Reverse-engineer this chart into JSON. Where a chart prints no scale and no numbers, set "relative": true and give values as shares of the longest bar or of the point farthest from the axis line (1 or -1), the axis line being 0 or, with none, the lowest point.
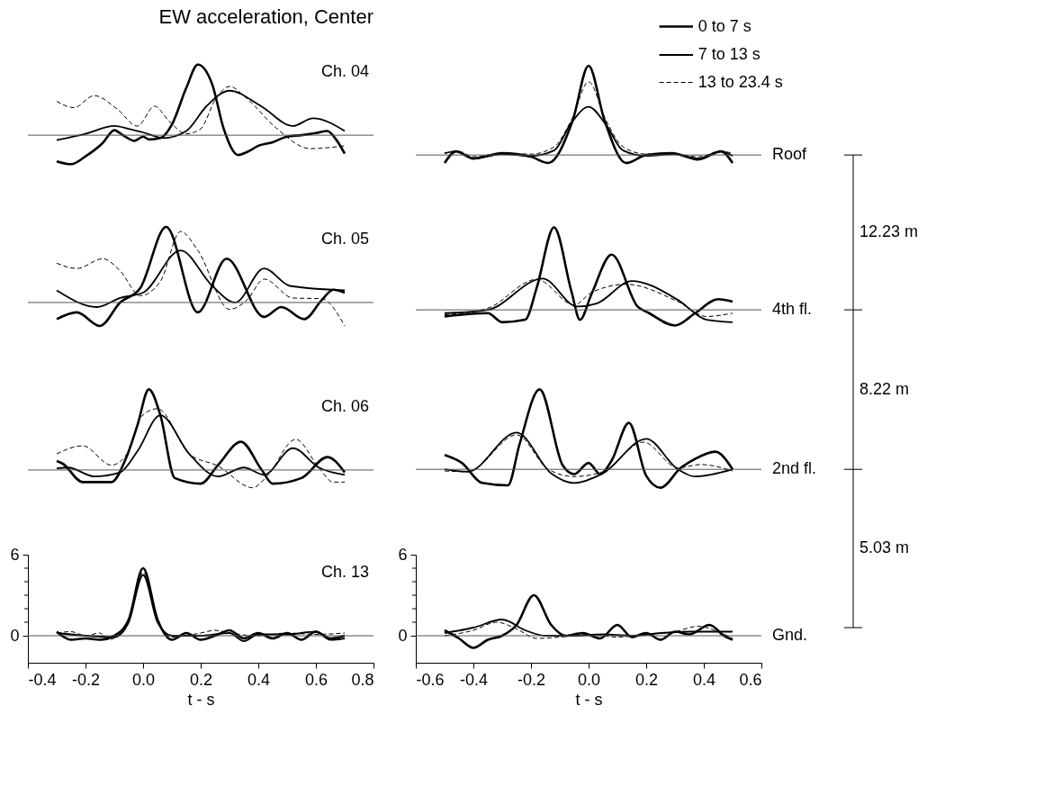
{
  "chart_data": [
    {
      "type": "line",
      "title": "EW acceleration, Center",
      "legend": "top right",
      "relative": true,
      "xlim": [
        -0.4,
        0.8
      ],
      "annotations": [
        "Ch. 04"
      ],
      "series": [
        {
          "name": "0 to 7 s",
          "color": "#000000",
          "line_style": "solid",
          "x": [
            -0.3,
            -0.25,
            -0.2,
            -0.14,
            -0.1,
            -0.07,
            -0.03,
            0.0,
            0.02,
            0.06,
            0.1,
            0.15,
            0.19,
            0.24,
            0.28,
            0.33,
            0.37,
            0.4,
            0.45,
            0.5,
            0.55,
            0.6,
            0.64,
            0.67,
            0.7
          ],
          "values": [
            -0.37,
            -0.41,
            -0.3,
            -0.11,
            0.07,
            0.0,
            -0.08,
            -0.02,
            -0.06,
            -0.04,
            0.15,
            0.67,
            1,
            0.72,
            0.09,
            -0.28,
            -0.22,
            -0.15,
            -0.1,
            -0.02,
            0.0,
            0.03,
            0.06,
            -0.06,
            -0.26
          ]
        },
        {
          "name": "7 to 13 s",
          "color": "#000000",
          "line_style": "solid",
          "x": [
            -0.3,
            -0.2,
            -0.1,
            -0.05,
            0.0,
            0.07,
            0.15,
            0.22,
            0.3,
            0.41,
            0.52,
            0.59,
            0.7
          ],
          "values": [
            -0.07,
            0.02,
            0.13,
            0.09,
            0.04,
            -0.04,
            0.06,
            0.41,
            0.63,
            0.41,
            0.13,
            0.24,
            0.06
          ]
        },
        {
          "name": "13 to 23.4 s",
          "color": "#000000",
          "line_style": "dashed",
          "x": [
            -0.3,
            -0.24,
            -0.17,
            -0.09,
            -0.02,
            0.04,
            0.09,
            0.15,
            0.2,
            0.25,
            0.3,
            0.36,
            0.46,
            0.58,
            0.7
          ],
          "values": [
            0.48,
            0.39,
            0.56,
            0.37,
            0.13,
            0.41,
            0.2,
            0.02,
            0.09,
            0.5,
            0.69,
            0.52,
            0.11,
            -0.19,
            -0.15
          ]
        }
      ]
    },
    {
      "type": "line",
      "relative": true,
      "xlim": [
        -0.6,
        0.6
      ],
      "annotations": [
        "Roof"
      ],
      "series": [
        {
          "name": "0 to 7 s",
          "color": "#000000",
          "line_style": "solid",
          "x": [
            -0.5,
            -0.46,
            -0.4,
            -0.3,
            -0.2,
            -0.14,
            -0.055,
            0.0,
            0.055,
            0.13,
            0.2,
            0.29,
            0.38,
            0.46,
            0.5
          ],
          "values": [
            -0.09,
            0.04,
            -0.04,
            0.02,
            -0.02,
            -0.09,
            0.39,
            1,
            0.39,
            -0.09,
            0.0,
            0.02,
            -0.05,
            0.04,
            -0.09
          ]
        },
        {
          "name": "7 to 13 s",
          "color": "#000000",
          "line_style": "solid",
          "x": [
            -0.5,
            -0.46,
            -0.4,
            -0.3,
            -0.2,
            -0.12,
            -0.06,
            0.0,
            0.06,
            0.12,
            0.2,
            0.3,
            0.38,
            0.46,
            0.5
          ],
          "values": [
            0.02,
            0.04,
            -0.04,
            0.01,
            -0.01,
            0.05,
            0.36,
            0.54,
            0.34,
            0.05,
            -0.01,
            0.01,
            -0.04,
            0.04,
            -0.01
          ]
        },
        {
          "name": "13 to 23.4 s",
          "color": "#000000",
          "line_style": "dashed",
          "x": [
            -0.5,
            -0.45,
            -0.4,
            -0.3,
            -0.2,
            -0.12,
            -0.06,
            0.0,
            0.06,
            0.12,
            0.2,
            0.3,
            0.38,
            0.46,
            0.5
          ],
          "values": [
            0.02,
            0.04,
            -0.02,
            0.02,
            0.01,
            0.09,
            0.39,
            0.82,
            0.39,
            0.09,
            0.01,
            0.01,
            -0.02,
            0.04,
            0.02
          ]
        }
      ]
    },
    {
      "type": "line",
      "relative": true,
      "xlim": [
        -0.4,
        0.8
      ],
      "annotations": [
        "Ch. 05"
      ],
      "series": [
        {
          "name": "0 to 7 s",
          "color": "#000000",
          "line_style": "solid",
          "x": [
            -0.3,
            -0.23,
            -0.15,
            -0.08,
            -0.01,
            0.08,
            0.19,
            0.29,
            0.42,
            0.48,
            0.56,
            0.62,
            0.66,
            0.7
          ],
          "values": [
            -0.22,
            -0.13,
            -0.31,
            0.0,
            0.19,
            1,
            -0.13,
            0.58,
            -0.19,
            -0.06,
            -0.22,
            0.03,
            0.17,
            0.13
          ]
        },
        {
          "name": "7 to 13 s",
          "color": "#000000",
          "line_style": "solid",
          "x": [
            -0.3,
            -0.16,
            -0.08,
            0.0,
            0.13,
            0.24,
            0.32,
            0.42,
            0.51,
            0.7
          ],
          "values": [
            0.16,
            -0.06,
            0.06,
            0.13,
            0.69,
            0.22,
            0.0,
            0.45,
            0.22,
            0.16
          ]
        },
        {
          "name": "13 to 23.4 s",
          "color": "#000000",
          "line_style": "dashed",
          "x": [
            -0.3,
            -0.23,
            -0.14,
            -0.08,
            -0.01,
            0.06,
            0.13,
            0.19,
            0.3,
            0.36,
            0.42,
            0.52,
            0.62,
            0.7
          ],
          "values": [
            0.52,
            0.45,
            0.58,
            0.42,
            0.09,
            0.28,
            0.94,
            0.69,
            -0.09,
            0.03,
            0.31,
            0.06,
            0.05,
            -0.31
          ]
        }
      ]
    },
    {
      "type": "line",
      "relative": true,
      "xlim": [
        -0.6,
        0.6
      ],
      "annotations": [
        "4th fl."
      ],
      "series": [
        {
          "name": "0 to 7 s",
          "color": "#000000",
          "line_style": "solid",
          "x": [
            -0.5,
            -0.35,
            -0.3,
            -0.22,
            -0.18,
            -0.12,
            -0.06,
            -0.03,
            0.01,
            0.08,
            0.17,
            0.21,
            0.3,
            0.37,
            0.45,
            0.5
          ],
          "values": [
            -0.08,
            -0.04,
            -0.15,
            -0.12,
            0.27,
            1,
            0.23,
            -0.12,
            0.19,
            0.67,
            0.04,
            -0.04,
            -0.19,
            -0.04,
            0.13,
            0.1
          ]
        },
        {
          "name": "7 to 13 s",
          "color": "#000000",
          "line_style": "solid",
          "x": [
            -0.5,
            -0.35,
            -0.16,
            -0.04,
            0.03,
            0.15,
            0.31,
            0.41,
            0.5
          ],
          "values": [
            -0.04,
            0.0,
            0.38,
            0.04,
            0.08,
            0.35,
            0.12,
            -0.12,
            -0.15
          ]
        },
        {
          "name": "13 to 23.4 s",
          "color": "#000000",
          "line_style": "dashed",
          "x": [
            -0.5,
            -0.35,
            -0.18,
            -0.05,
            0.01,
            0.13,
            0.31,
            0.41,
            0.5
          ],
          "values": [
            -0.06,
            0.02,
            0.37,
            0.06,
            0.21,
            0.31,
            0.1,
            -0.08,
            -0.04
          ]
        }
      ]
    },
    {
      "type": "line",
      "relative": true,
      "xlim": [
        -0.4,
        0.8
      ],
      "annotations": [
        "Ch. 06"
      ],
      "series": [
        {
          "name": "0 to 7 s",
          "color": "#000000",
          "line_style": "solid",
          "x": [
            -0.3,
            -0.28,
            -0.21,
            -0.11,
            -0.06,
            -0.02,
            0.02,
            0.06,
            0.11,
            0.2,
            0.26,
            0.34,
            0.41,
            0.45,
            0.55,
            0.64,
            0.7
          ],
          "values": [
            0.11,
            0.08,
            -0.15,
            -0.15,
            0.14,
            0.55,
            1,
            0.68,
            -0.1,
            -0.17,
            0.06,
            0.35,
            0.01,
            -0.17,
            -0.1,
            0.16,
            -0.03
          ]
        },
        {
          "name": "7 to 13 s",
          "color": "#000000",
          "line_style": "solid",
          "x": [
            -0.3,
            -0.26,
            -0.17,
            -0.08,
            -0.02,
            0.06,
            0.16,
            0.26,
            0.35,
            0.42,
            0.52,
            0.61,
            0.7
          ],
          "values": [
            0.02,
            0.03,
            -0.08,
            -0.03,
            0.23,
            0.68,
            0.2,
            -0.08,
            0.03,
            -0.06,
            0.27,
            0.03,
            -0.06
          ]
        },
        {
          "name": "13 to 23.4 s",
          "color": "#000000",
          "line_style": "dashed",
          "x": [
            -0.3,
            -0.21,
            -0.11,
            -0.05,
            -0.01,
            0.05,
            0.16,
            0.26,
            0.38,
            0.43,
            0.53,
            0.61,
            0.66,
            0.7
          ],
          "values": [
            0.2,
            0.3,
            0.06,
            0.23,
            0.65,
            0.76,
            0.2,
            0.05,
            -0.22,
            -0.08,
            0.38,
            0.03,
            -0.15,
            -0.15
          ]
        }
      ]
    },
    {
      "type": "line",
      "relative": true,
      "xlim": [
        -0.6,
        0.6
      ],
      "annotations": [
        "2nd fl."
      ],
      "series": [
        {
          "name": "0 to 7 s",
          "color": "#000000",
          "line_style": "solid",
          "x": [
            -0.5,
            -0.44,
            -0.37,
            -0.28,
            -0.24,
            -0.17,
            -0.09,
            -0.05,
            0.0,
            0.04,
            0.08,
            0.14,
            0.2,
            0.25,
            0.32,
            0.36,
            0.44,
            0.5
          ],
          "values": [
            0.18,
            0.08,
            -0.17,
            -0.2,
            0.31,
            1,
            0.05,
            -0.06,
            0.08,
            -0.06,
            0.11,
            0.58,
            -0.08,
            -0.23,
            0.02,
            0.11,
            0.22,
            0.0
          ]
        },
        {
          "name": "7 to 13 s",
          "color": "#000000",
          "line_style": "solid",
          "x": [
            -0.5,
            -0.42,
            -0.25,
            -0.13,
            -0.05,
            0.05,
            0.2,
            0.31,
            0.37,
            0.5
          ],
          "values": [
            0.0,
            -0.03,
            0.46,
            -0.05,
            -0.17,
            -0.05,
            0.38,
            0.0,
            -0.09,
            0.0
          ]
        },
        {
          "name": "13 to 23.4 s",
          "color": "#000000",
          "line_style": "dashed",
          "x": [
            -0.5,
            -0.42,
            -0.25,
            -0.14,
            -0.05,
            0.05,
            0.19,
            0.31,
            0.39,
            0.5
          ],
          "values": [
            -0.02,
            -0.03,
            0.43,
            0.0,
            -0.09,
            -0.03,
            0.34,
            0.02,
            0.06,
            -0.02
          ]
        }
      ]
    },
    {
      "type": "line",
      "xlim": [
        -0.4,
        0.8
      ],
      "ylim": [
        -2,
        6
      ],
      "xlabel": "t - s",
      "xticks": [
        -0.4,
        -0.2,
        {
          "value": 0,
          "label": "0.0"
        },
        0.2,
        0.4,
        0.6,
        0.8
      ],
      "yticks": [
        0,
        {
          "value": 1,
          "label": null
        },
        {
          "value": 2,
          "label": null
        },
        {
          "value": 3,
          "label": null
        },
        {
          "value": 4,
          "label": null
        },
        {
          "value": 5,
          "label": null
        },
        6
      ],
      "ref_lines": [
        {
          "axis": "y",
          "value": 0
        }
      ],
      "annotations": [
        "Ch. 13"
      ],
      "series": [
        {
          "name": "0 to 7 s",
          "color": "#000000",
          "line_style": "solid",
          "x": [
            -0.3,
            -0.25,
            -0.2,
            -0.15,
            -0.1,
            -0.05,
            0.0,
            0.05,
            0.1,
            0.15,
            0.2,
            0.25,
            0.3,
            0.35,
            0.4,
            0.45,
            0.5,
            0.55,
            0.6,
            0.65,
            0.7
          ],
          "values": [
            0.3,
            -0.3,
            -0.2,
            -0.3,
            0.0,
            1.2,
            5.0,
            1.2,
            -0.3,
            0.2,
            -0.3,
            0.0,
            0.4,
            -0.2,
            0.2,
            -0.2,
            0.2,
            -0.3,
            0.3,
            -0.2,
            0.0
          ]
        },
        {
          "name": "7 to 13 s",
          "color": "#000000",
          "line_style": "solid",
          "x": [
            -0.3,
            -0.2,
            -0.1,
            -0.05,
            0.0,
            0.05,
            0.1,
            0.2,
            0.3,
            0.35,
            0.4,
            0.5,
            0.6,
            0.65,
            0.7
          ],
          "values": [
            0.2,
            0.0,
            -0.1,
            1.0,
            4.5,
            1.0,
            0.0,
            0.0,
            0.2,
            -0.4,
            0.1,
            0.1,
            0.3,
            -0.3,
            -0.2
          ]
        },
        {
          "name": "13 to 23.4 s",
          "color": "#000000",
          "line_style": "dashed",
          "x": [
            -0.3,
            -0.25,
            -0.2,
            -0.15,
            -0.12,
            -0.05,
            0.0,
            0.05,
            0.1,
            0.2,
            0.25,
            0.3,
            0.4,
            0.5,
            0.6,
            0.7
          ],
          "values": [
            0.2,
            0.3,
            0.0,
            0.2,
            -0.3,
            1.1,
            4.7,
            1.1,
            -0.1,
            0.2,
            0.4,
            0.2,
            0.0,
            0.2,
            0.1,
            0.2
          ]
        }
      ]
    },
    {
      "type": "line",
      "xlim": [
        -0.6,
        0.6
      ],
      "ylim": [
        -2,
        6
      ],
      "xlabel": "t - s",
      "xticks": [
        -0.6,
        -0.4,
        -0.2,
        {
          "value": 0,
          "label": "0.0"
        },
        0.2,
        0.4,
        0.6
      ],
      "yticks": [
        0,
        {
          "value": 1,
          "label": null
        },
        {
          "value": 2,
          "label": null
        },
        {
          "value": 3,
          "label": null
        },
        {
          "value": 4,
          "label": null
        },
        {
          "value": 5,
          "label": null
        },
        6
      ],
      "ref_lines": [
        {
          "axis": "y",
          "value": 0
        }
      ],
      "annotations": [
        "Gnd."
      ],
      "series": [
        {
          "name": "0 to 7 s",
          "color": "#000000",
          "line_style": "solid",
          "x": [
            -0.5,
            -0.45,
            -0.4,
            -0.35,
            -0.3,
            -0.25,
            -0.19,
            -0.13,
            -0.08,
            -0.02,
            0.04,
            0.1,
            0.15,
            0.2,
            0.25,
            0.3,
            0.35,
            0.42,
            0.47,
            0.5
          ],
          "values": [
            0.4,
            -0.2,
            -0.9,
            -0.3,
            0.0,
            0.8,
            3.0,
            0.8,
            0.0,
            0.2,
            -0.2,
            0.8,
            -0.1,
            0.2,
            -0.3,
            0.3,
            0.1,
            0.8,
            0.0,
            -0.3
          ]
        },
        {
          "name": "7 to 13 s",
          "color": "#000000",
          "line_style": "solid",
          "x": [
            -0.5,
            -0.4,
            -0.3,
            -0.22,
            -0.15,
            -0.05,
            0.05,
            0.15,
            0.25,
            0.35,
            0.45,
            0.5
          ],
          "values": [
            0.2,
            0.6,
            1.2,
            0.4,
            0.0,
            0.0,
            0.1,
            0.0,
            0.2,
            0.3,
            0.3,
            0.3
          ]
        },
        {
          "name": "13 to 23.4 s",
          "color": "#000000",
          "line_style": "dashed",
          "x": [
            -0.5,
            -0.4,
            -0.32,
            -0.25,
            -0.18,
            -0.1,
            0.0,
            0.1,
            0.2,
            0.3,
            0.38,
            0.45,
            0.5
          ],
          "values": [
            0.0,
            0.4,
            1.0,
            0.5,
            -0.2,
            -0.1,
            0.1,
            -0.1,
            0.1,
            0.3,
            0.7,
            0.3,
            -0.2
          ]
        }
      ]
    },
    {
      "type": "other",
      "annotations": [
        "12.23 m",
        "8.22 m",
        "5.03 m"
      ]
    }
  ]
}
